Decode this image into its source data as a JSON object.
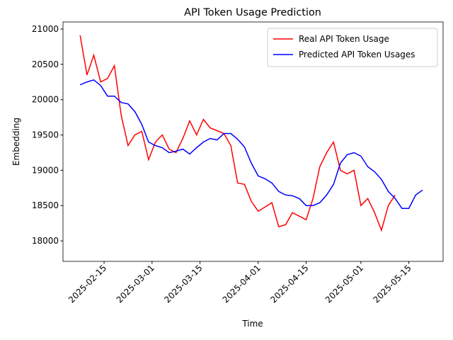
{
  "chart_data": {
    "type": "line",
    "title": "API Token Usage Prediction",
    "x_label": "Time",
    "y_label": "Embedding",
    "x": [
      "2025-02-08",
      "2025-02-10",
      "2025-02-12",
      "2025-02-14",
      "2025-02-16",
      "2025-02-18",
      "2025-02-20",
      "2025-02-22",
      "2025-02-24",
      "2025-02-26",
      "2025-02-28",
      "2025-03-02",
      "2025-03-04",
      "2025-03-06",
      "2025-03-08",
      "2025-03-10",
      "2025-03-12",
      "2025-03-14",
      "2025-03-16",
      "2025-03-18",
      "2025-03-20",
      "2025-03-22",
      "2025-03-24",
      "2025-03-26",
      "2025-03-28",
      "2025-03-30",
      "2025-04-01",
      "2025-04-03",
      "2025-04-05",
      "2025-04-07",
      "2025-04-09",
      "2025-04-11",
      "2025-04-13",
      "2025-04-15",
      "2025-04-17",
      "2025-04-19",
      "2025-04-21",
      "2025-04-23",
      "2025-04-25",
      "2025-04-27",
      "2025-04-29",
      "2025-05-01",
      "2025-05-03",
      "2025-05-05",
      "2025-05-07",
      "2025-05-09",
      "2025-05-11",
      "2025-05-13",
      "2025-05-15",
      "2025-05-17",
      "2025-05-19"
    ],
    "series": [
      {
        "name": "Real API Token Usage",
        "color": "#ff0000",
        "values": [
          20910,
          20350,
          20630,
          20250,
          20300,
          20480,
          19780,
          19350,
          19500,
          19550,
          19150,
          19400,
          19500,
          19300,
          19250,
          19450,
          19700,
          19500,
          19720,
          19600,
          19560,
          19520,
          19350,
          18820,
          18800,
          18560,
          18420,
          18480,
          18540,
          18200,
          18230,
          18400,
          18350,
          18300,
          18600,
          19050,
          19250,
          19400,
          19000,
          18950,
          19000,
          18500,
          18600,
          18400,
          18150,
          18500,
          18650,
          null,
          null,
          null,
          null
        ]
      },
      {
        "name": "Predicted API Token Usages",
        "color": "#0000ff",
        "values": [
          20210,
          20250,
          20280,
          20200,
          20050,
          20050,
          19960,
          19940,
          19830,
          19650,
          19400,
          19350,
          19320,
          19250,
          19270,
          19300,
          19230,
          19320,
          19400,
          19450,
          19430,
          19520,
          19520,
          19440,
          19330,
          19100,
          18920,
          18880,
          18820,
          18700,
          18650,
          18640,
          18600,
          18500,
          18500,
          18540,
          18650,
          18800,
          19100,
          19220,
          19250,
          19200,
          19050,
          18980,
          18870,
          18700,
          18600,
          18460,
          18460,
          18650,
          18720
        ]
      }
    ],
    "xlim": [
      "2025-02-03",
      "2025-05-25"
    ],
    "xticks": [
      "2025-02-15",
      "2025-03-01",
      "2025-03-15",
      "2025-04-01",
      "2025-04-15",
      "2025-05-01",
      "2025-05-15"
    ],
    "ylim": [
      17710,
      21100
    ],
    "yticks": [
      18000,
      18500,
      19000,
      19500,
      20000,
      20500,
      21000
    ],
    "grid": false,
    "legend": "upper right"
  }
}
